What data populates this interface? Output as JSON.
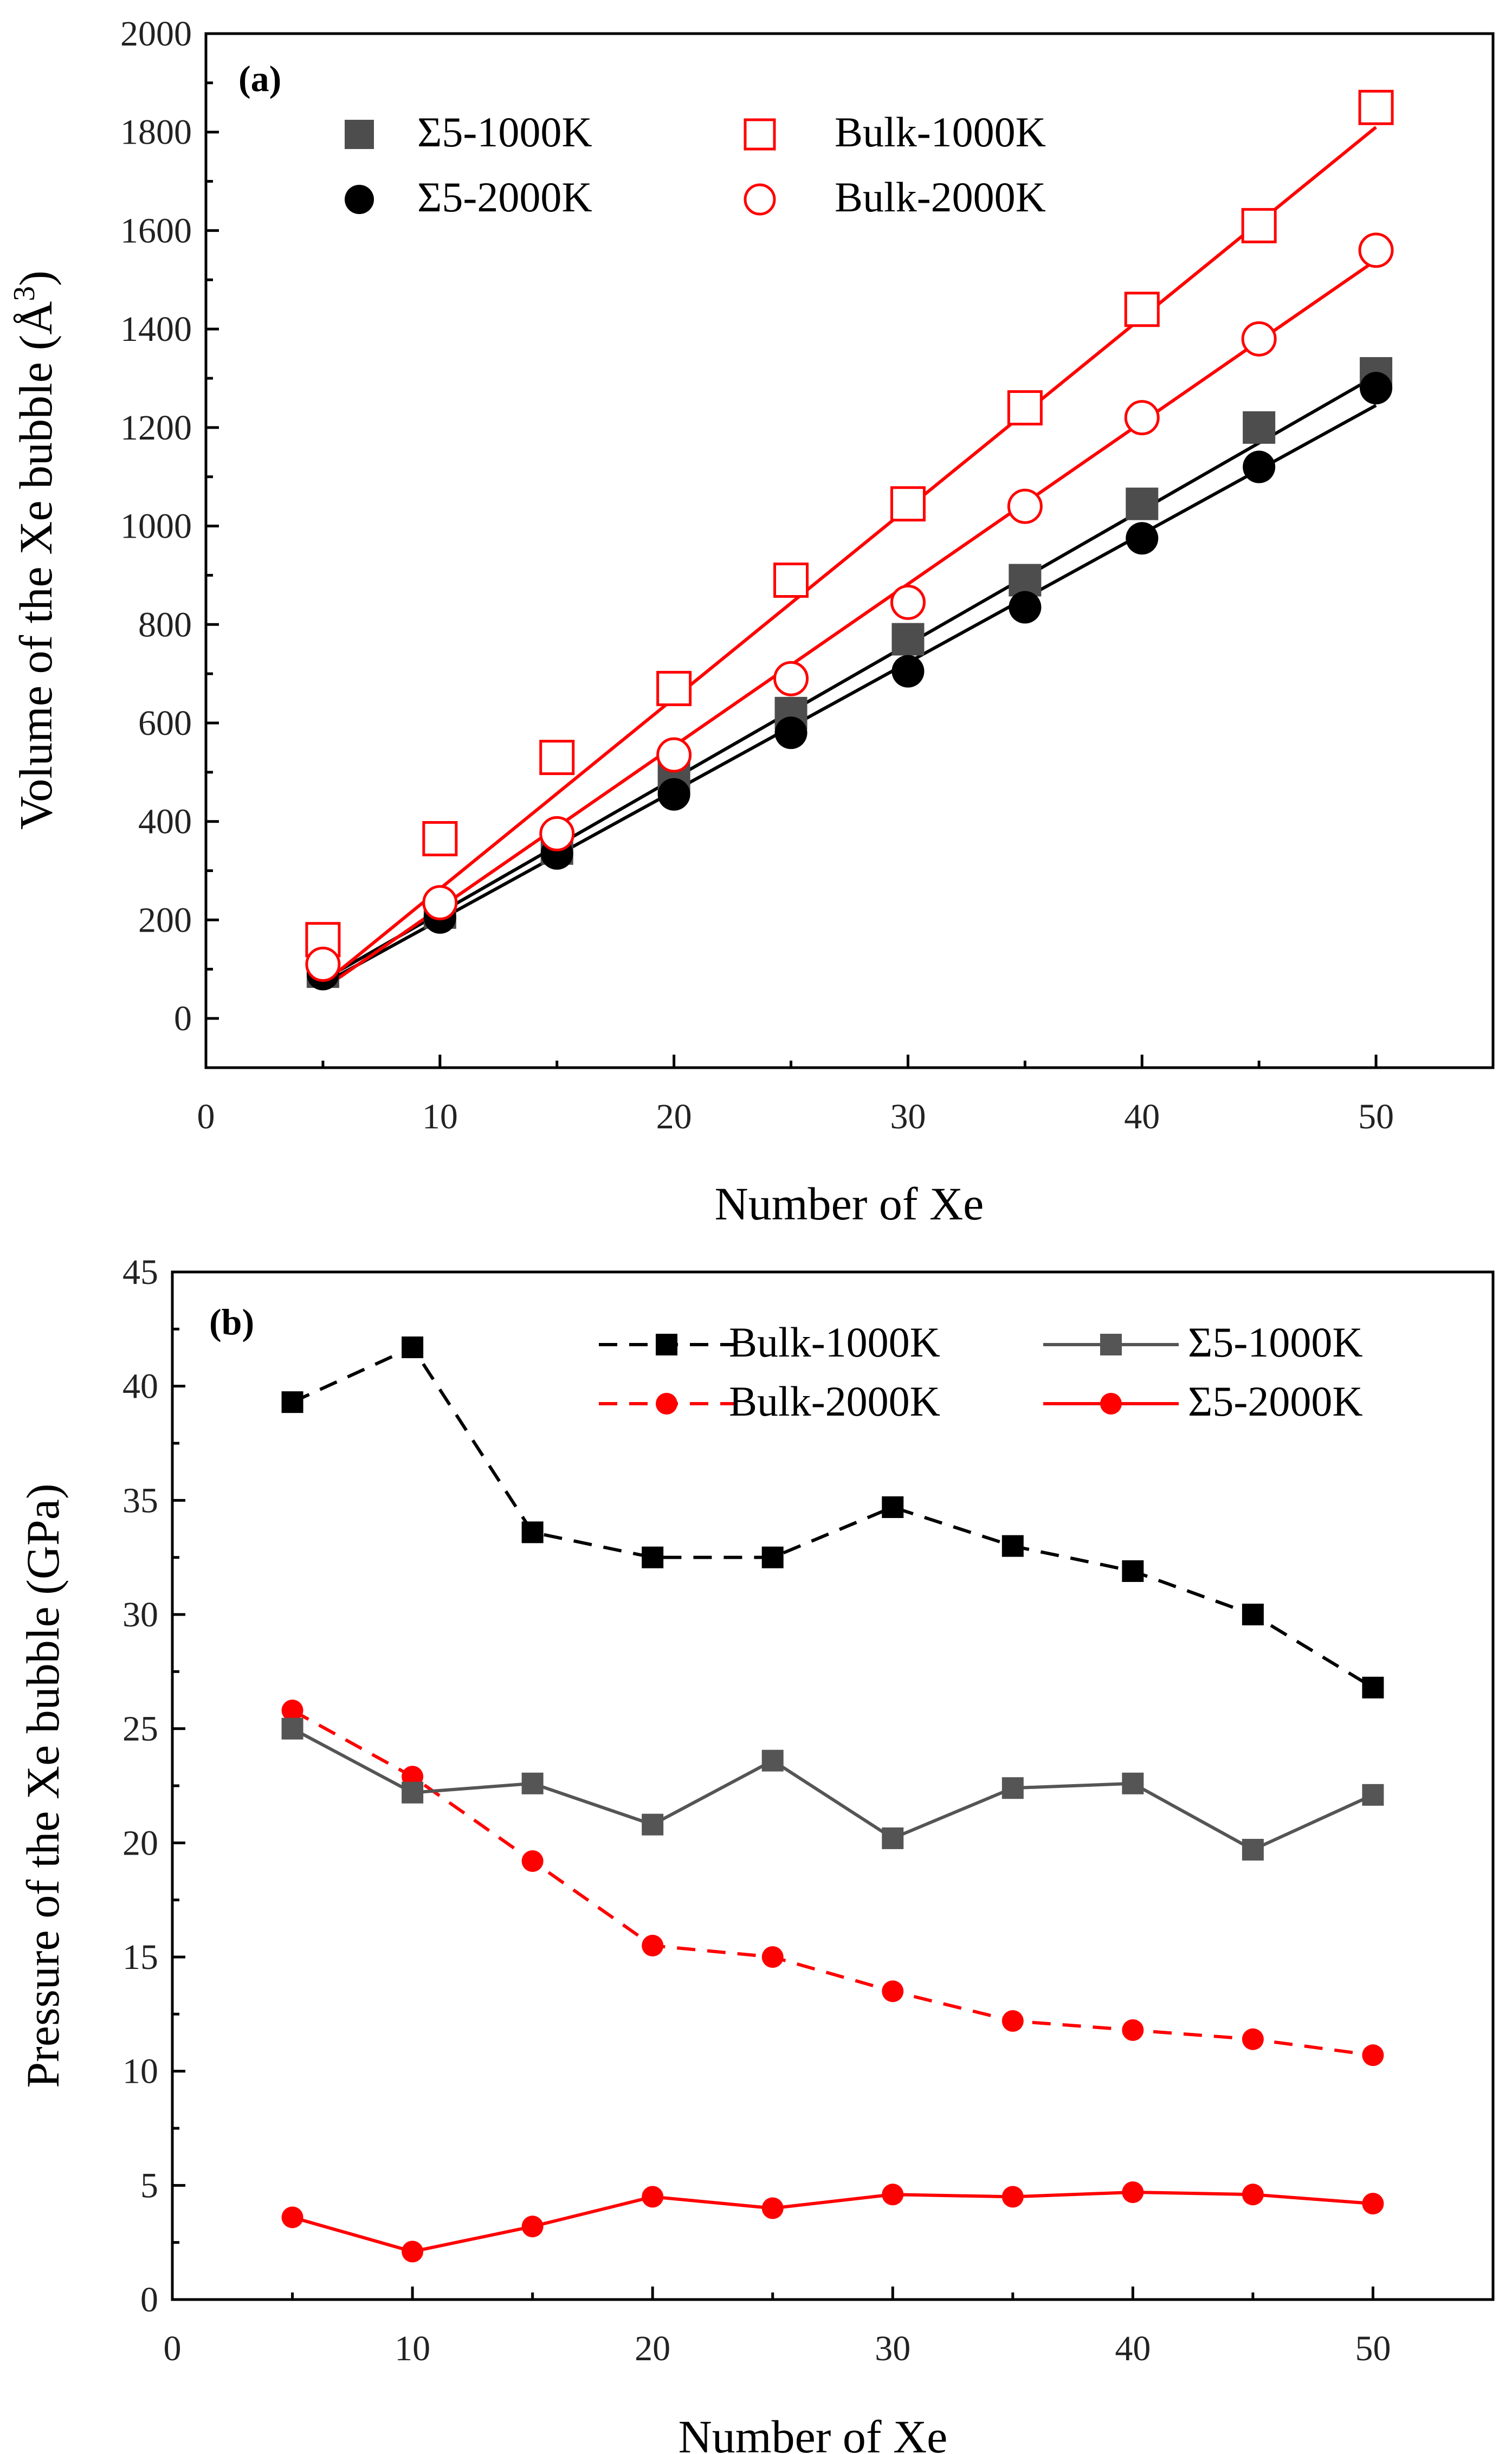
{
  "chart_data": [
    {
      "id": "a",
      "type": "scatter",
      "panel_label": "(a)",
      "xlabel": "Number of Xe",
      "ylabel_parts": [
        "Volume of the Xe bubble (Å",
        "3",
        ")"
      ],
      "xlim": [
        0,
        55
      ],
      "ylim": [
        -100,
        2000
      ],
      "xticks": [
        0,
        10,
        20,
        30,
        40,
        50
      ],
      "yticks": [
        0,
        200,
        400,
        600,
        800,
        1000,
        1200,
        1400,
        1600,
        1800,
        2000
      ],
      "x": [
        5,
        10,
        15,
        20,
        25,
        30,
        35,
        40,
        45,
        50
      ],
      "legend_position": "top-left",
      "series": [
        {
          "name": "Σ5-1000K",
          "marker": "square",
          "fill": true,
          "color": "#4d4d4d",
          "values": [
            95,
            215,
            345,
            490,
            620,
            770,
            890,
            1045,
            1200,
            1310
          ],
          "fit": {
            "x": [
              5,
              50
            ],
            "y": [
              78,
              1305
            ],
            "color": "#000000"
          }
        },
        {
          "name": "Σ5-2000K",
          "marker": "circle",
          "fill": true,
          "color": "#000000",
          "values": [
            90,
            205,
            335,
            455,
            580,
            705,
            835,
            975,
            1120,
            1280
          ],
          "fit": {
            "x": [
              5,
              50
            ],
            "y": [
              70,
              1245
            ],
            "color": "#000000"
          }
        },
        {
          "name": "Bulk-1000K",
          "marker": "square",
          "fill": false,
          "color": "#ff0000",
          "values": [
            160,
            365,
            530,
            670,
            890,
            1045,
            1240,
            1440,
            1610,
            1850
          ],
          "fit": {
            "x": [
              5,
              50
            ],
            "y": [
              70,
              1810
            ],
            "color": "#ff0000"
          }
        },
        {
          "name": "Bulk-2000K",
          "marker": "circle",
          "fill": false,
          "color": "#ff0000",
          "values": [
            110,
            235,
            375,
            535,
            690,
            845,
            1040,
            1220,
            1380,
            1560
          ],
          "fit": {
            "x": [
              5,
              50
            ],
            "y": [
              60,
              1540
            ],
            "color": "#ff0000"
          }
        }
      ]
    },
    {
      "id": "b",
      "type": "line",
      "panel_label": "(b)",
      "xlabel": "Number of Xe",
      "ylabel": "Pressure of the Xe bubble (GPa)",
      "xlim": [
        0,
        55
      ],
      "ylim": [
        0,
        45
      ],
      "xticks": [
        0,
        10,
        20,
        30,
        40,
        50
      ],
      "yticks": [
        0,
        5,
        10,
        15,
        20,
        25,
        30,
        35,
        40,
        45
      ],
      "x": [
        5,
        10,
        15,
        20,
        25,
        30,
        35,
        40,
        45,
        50
      ],
      "legend_position": "top-right",
      "series": [
        {
          "name": "Bulk-1000K",
          "marker": "square",
          "line": "dashed",
          "color": "#000000",
          "values": [
            39.3,
            41.7,
            33.6,
            32.5,
            32.5,
            34.7,
            33.0,
            31.9,
            30.0,
            26.8
          ]
        },
        {
          "name": "Bulk-2000K",
          "marker": "circle",
          "line": "dashed",
          "color": "#ff0000",
          "values": [
            25.8,
            22.9,
            19.2,
            15.5,
            15.0,
            13.5,
            12.2,
            11.8,
            11.4,
            10.7
          ]
        },
        {
          "name": "Σ5-1000K",
          "marker": "square",
          "line": "solid",
          "color": "#555555",
          "values": [
            25.0,
            22.2,
            22.6,
            20.8,
            23.6,
            20.2,
            22.4,
            22.6,
            19.7,
            22.1
          ]
        },
        {
          "name": "Σ5-2000K",
          "marker": "circle",
          "line": "solid",
          "color": "#ff0000",
          "values": [
            3.6,
            2.1,
            3.2,
            4.5,
            4.0,
            4.6,
            4.5,
            4.7,
            4.6,
            4.2
          ]
        }
      ]
    }
  ]
}
